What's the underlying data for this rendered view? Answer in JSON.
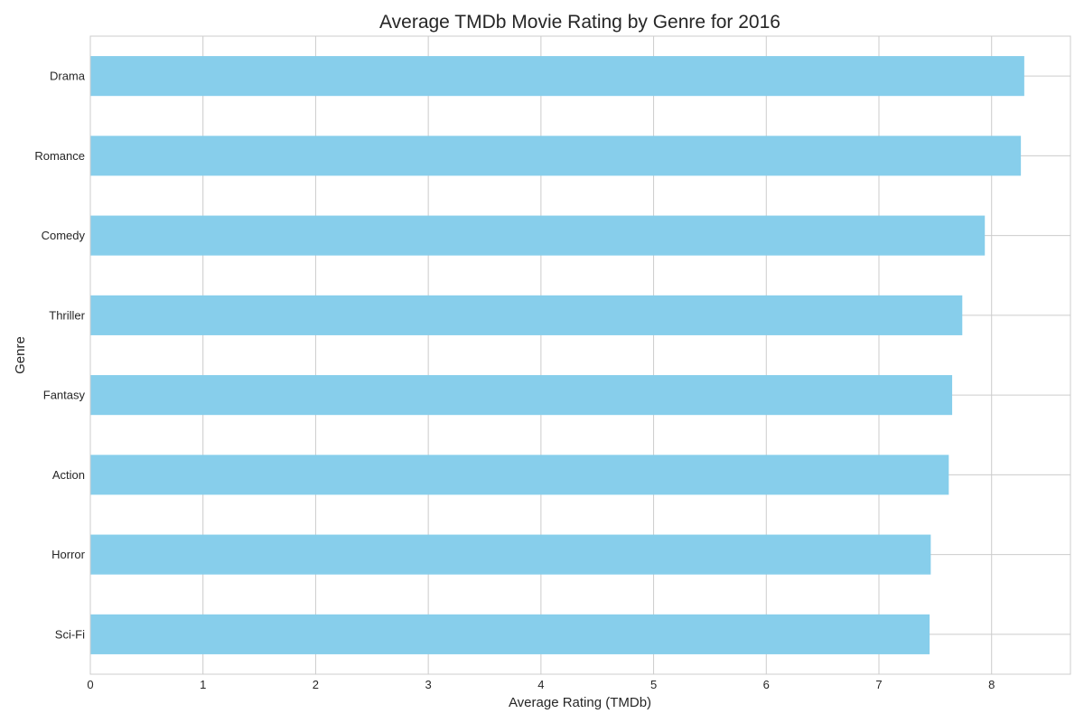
{
  "chart_data": {
    "type": "bar",
    "orientation": "horizontal",
    "title": "Average TMDb Movie Rating by Genre for 2016",
    "xlabel": "Average Rating (TMDb)",
    "ylabel": "Genre",
    "categories": [
      "Drama",
      "Romance",
      "Comedy",
      "Thriller",
      "Fantasy",
      "Action",
      "Horror",
      "Sci-Fi"
    ],
    "values": [
      8.29,
      8.26,
      7.94,
      7.74,
      7.65,
      7.62,
      7.46,
      7.45
    ],
    "xlim": [
      0,
      8.7
    ],
    "xticks": [
      "0",
      "1",
      "2",
      "3",
      "4",
      "5",
      "6",
      "7",
      "8"
    ],
    "grid": true,
    "colors": {
      "bar": "#87ceeb",
      "grid": "#cccccc",
      "axis": "#cccccc",
      "text": "#262626"
    }
  }
}
